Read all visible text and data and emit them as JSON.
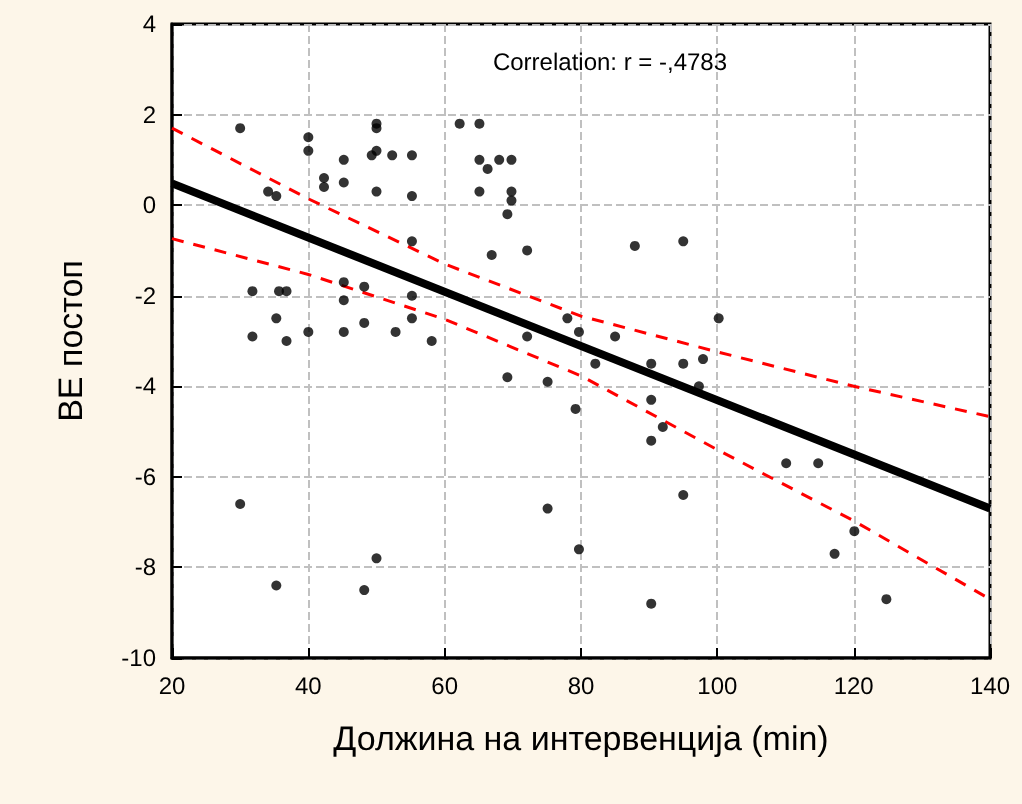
{
  "chart_data": {
    "type": "scatter",
    "title": "Correlation: r = -,4783",
    "xlabel": "Должина на интервенција (min)",
    "ylabel": "BE постоп",
    "xlim": [
      20,
      140
    ],
    "xticks": [
      20,
      40,
      60,
      80,
      100,
      120,
      140
    ],
    "ylim": [
      -10,
      4
    ],
    "yticks": [
      -10,
      -8,
      -6,
      -4,
      -2,
      0,
      2,
      4
    ],
    "grid": true,
    "series": [
      {
        "color": "#000000",
        "marker": "circle",
        "x": [
          30,
          40,
          40,
          50,
          50,
          49.3,
          50,
          52.3,
          55.2,
          45.2,
          42.3,
          42.3,
          45.2,
          34.1,
          35.3,
          50,
          55.2,
          55.2,
          31.8,
          35.7,
          36.8,
          45.2,
          45.2,
          48.2,
          55.2,
          31.8,
          35.3,
          36.8,
          40,
          45.2,
          48.2,
          52.8,
          55.2,
          58.1,
          30,
          35.3,
          48.2,
          50,
          62.2,
          65.1,
          65.1,
          68,
          69.8,
          66.3,
          65.1,
          69.8,
          69.8,
          69.2,
          66.9,
          72.1,
          72.1,
          69.2,
          75.1,
          78,
          79.7,
          85,
          82.1,
          79.2,
          87.9,
          95,
          90.3,
          95,
          90.3,
          92,
          90.3,
          95,
          75.1,
          79.7,
          90.3,
          97.9,
          97.3,
          100.2,
          110.1,
          114.8,
          120.1,
          117.2,
          124.8
        ],
        "values": [
          1.7,
          1.5,
          1.2,
          1.8,
          1.7,
          1.1,
          1.2,
          1.1,
          1.1,
          1,
          0.6,
          0.4,
          0.5,
          0.3,
          0.2,
          0.3,
          0.2,
          -0.8,
          -1.9,
          -1.9,
          -1.9,
          -1.7,
          -2.1,
          -1.8,
          -2,
          -2.9,
          -2.5,
          -3,
          -2.8,
          -2.8,
          -2.6,
          -2.8,
          -2.5,
          -3,
          -6.6,
          -8.4,
          -8.5,
          -7.8,
          1.8,
          1.8,
          1,
          1,
          1,
          0.8,
          0.3,
          0.3,
          0.1,
          -0.2,
          -1.1,
          -1,
          -2.9,
          -3.8,
          -3.9,
          -2.5,
          -2.8,
          -2.9,
          -3.5,
          -4.5,
          -0.9,
          -0.8,
          -3.5,
          -3.5,
          -4.3,
          -4.9,
          -5.2,
          -6.4,
          -6.7,
          -7.6,
          -8.8,
          -3.4,
          -4,
          -2.5,
          -5.7,
          -5.7,
          -7.2,
          -7.7,
          -8.7
        ]
      },
      {
        "type": "line",
        "color": "#000000",
        "line_style": "solid",
        "marker": "none",
        "x": [
          20,
          140
        ],
        "values": [
          0.48,
          -6.7
        ]
      },
      {
        "type": "line",
        "color": "#ff0000",
        "line_style": "dashed",
        "marker": "none",
        "x": [
          20,
          40,
          60,
          80,
          100,
          120,
          140
        ],
        "values": [
          1.7,
          0.14,
          -1.3,
          -2.45,
          -3.24,
          -4,
          -4.67
        ]
      },
      {
        "type": "line",
        "color": "#ff0000",
        "line_style": "dashed",
        "marker": "none",
        "x": [
          20,
          40,
          60,
          80,
          100,
          120,
          140
        ],
        "values": [
          -0.74,
          -1.53,
          -2.52,
          -3.77,
          -5.4,
          -6.97,
          -8.7
        ]
      }
    ]
  }
}
